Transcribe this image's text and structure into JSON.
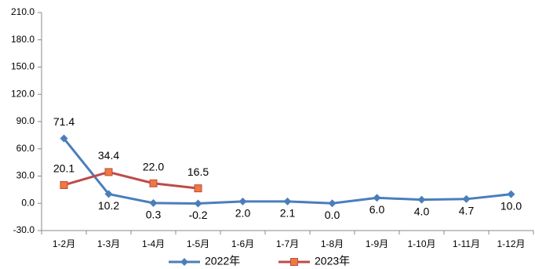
{
  "chart_data": {
    "type": "line",
    "categories": [
      "1-2月",
      "1-3月",
      "1-4月",
      "1-5月",
      "1-6月",
      "1-7月",
      "1-8月",
      "1-9月",
      "1-10月",
      "1-11月",
      "1-12月"
    ],
    "series": [
      {
        "name": "2022年",
        "color": "#4a7ebb",
        "marker": "diamond",
        "values": [
          71.4,
          10.2,
          0.3,
          -0.2,
          2.0,
          2.1,
          0.0,
          6.0,
          4.0,
          4.7,
          10.0
        ],
        "value_labels": [
          "71.4",
          "10.2",
          "0.3",
          "-0.2",
          "2.0",
          "2.1",
          "0.0",
          "6.0",
          "4.0",
          "4.7",
          "10.0"
        ]
      },
      {
        "name": "2023年",
        "color": "#be4b48",
        "marker": "square",
        "values": [
          20.1,
          34.4,
          22.0,
          16.5,
          null,
          null,
          null,
          null,
          null,
          null,
          null
        ],
        "value_labels": [
          "20.1",
          "34.4",
          "22.0",
          "16.5",
          null,
          null,
          null,
          null,
          null,
          null,
          null
        ]
      }
    ],
    "ylim": [
      -30,
      210
    ],
    "yticks": [
      {
        "value": -30,
        "label": "-30.0"
      },
      {
        "value": 0,
        "label": "0.0"
      },
      {
        "value": 30,
        "label": "30.0"
      },
      {
        "value": 60,
        "label": "60.0"
      },
      {
        "value": 90,
        "label": "90.0"
      },
      {
        "value": 120,
        "label": "120.0"
      },
      {
        "value": 150,
        "label": "150.0"
      },
      {
        "value": 180,
        "label": "180.0"
      },
      {
        "value": 210,
        "label": "210.0"
      }
    ],
    "grid": false,
    "legend": "bottom"
  }
}
